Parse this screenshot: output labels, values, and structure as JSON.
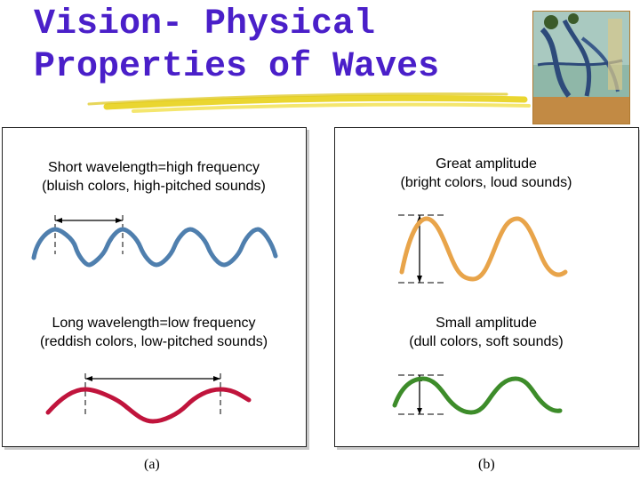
{
  "slide": {
    "title_line1": "Vision-  Physical",
    "title_line2": "Properties of Waves",
    "title_color": "#4a1fc9",
    "underline_color": "#e8d21a"
  },
  "panel_a": {
    "label": "(a)",
    "top_caption_line1": "Short wavelength=high frequency",
    "top_caption_line2": "(bluish colors, high-pitched sounds)",
    "bottom_caption_line1": "Long wavelength=low frequency",
    "bottom_caption_line2": "(reddish colors, low-pitched sounds)",
    "top_wave_color": "#4f7fae",
    "bottom_wave_color": "#c0143c"
  },
  "panel_b": {
    "label": "(b)",
    "top_caption_line1": "Great amplitude",
    "top_caption_line2": "(bright colors, loud sounds)",
    "bottom_caption_line1": "Small amplitude",
    "bottom_caption_line2": "(dull colors, soft sounds)",
    "top_wave_color": "#e8a44a",
    "bottom_wave_color": "#3d8c2a"
  }
}
